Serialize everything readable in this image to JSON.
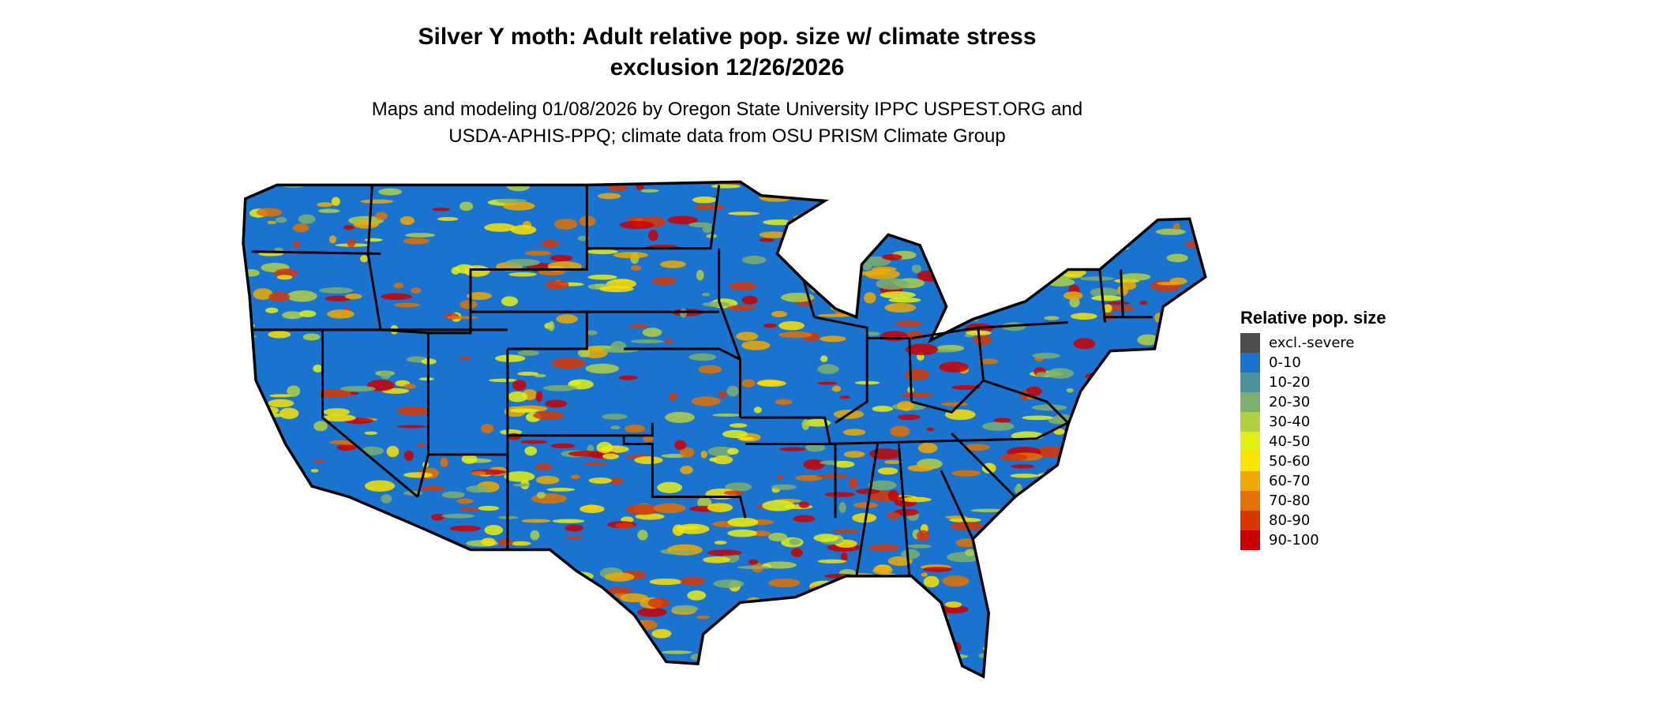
{
  "title": {
    "line1": "Silver Y moth: Adult relative pop. size w/ climate stress",
    "line2": "exclusion 12/26/2026"
  },
  "subtitle": {
    "line1": "Maps and modeling 01/08/2026 by Oregon State University IPPC USPEST.ORG and",
    "line2": "USDA-APHIS-PPQ; climate data from OSU PRISM Climate Group"
  },
  "map": {
    "region": "Contiguous United States",
    "background_class_color": "#1A73CE",
    "border_color": "#000000"
  },
  "legend": {
    "title": "Relative pop. size",
    "items": [
      {
        "label": "excl.-severe",
        "color": "#4D4D4D"
      },
      {
        "label": "0-10",
        "color": "#1A73CE"
      },
      {
        "label": "10-20",
        "color": "#4A919A"
      },
      {
        "label": "20-30",
        "color": "#7DAF6F"
      },
      {
        "label": "30-40",
        "color": "#B2D043"
      },
      {
        "label": "40-50",
        "color": "#E4EF14"
      },
      {
        "label": "50-60",
        "color": "#F9E300"
      },
      {
        "label": "60-70",
        "color": "#EEAA00"
      },
      {
        "label": "70-80",
        "color": "#E47200"
      },
      {
        "label": "80-90",
        "color": "#DA3600"
      },
      {
        "label": "90-100",
        "color": "#CC0000"
      }
    ]
  }
}
